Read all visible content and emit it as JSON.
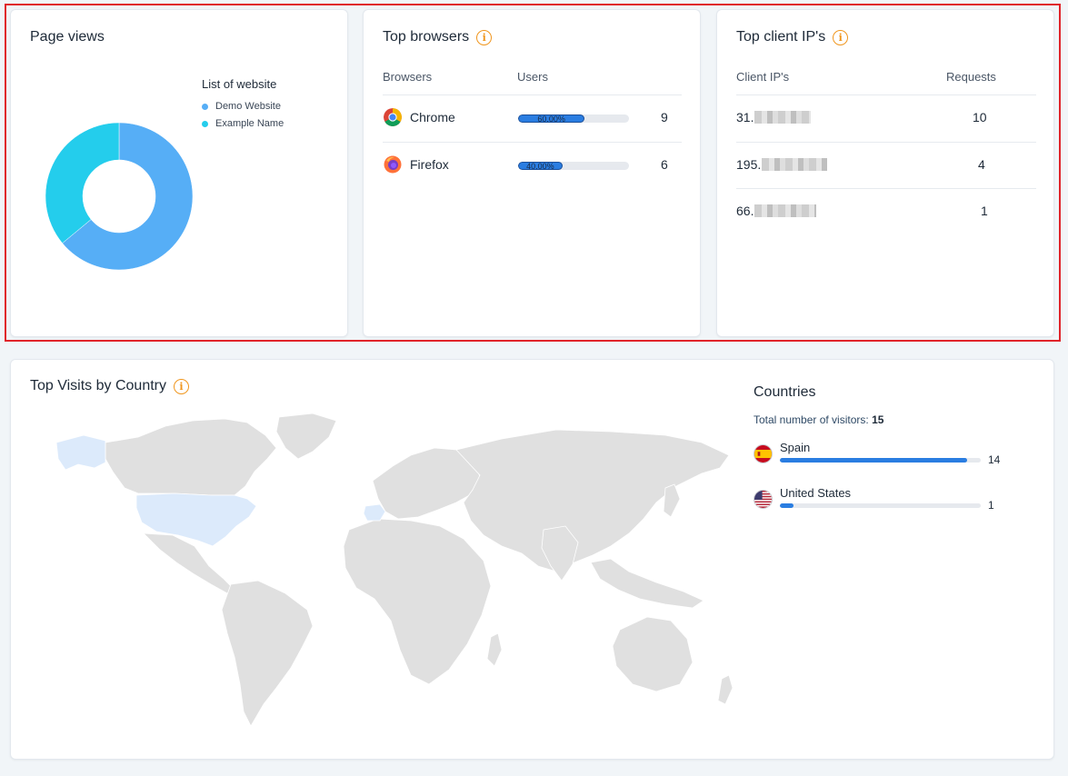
{
  "page_views": {
    "title": "Page views",
    "legend_title": "List of website",
    "chart_data": {
      "type": "pie",
      "variant": "donut",
      "categories": [
        "Demo Website",
        "Example Name"
      ],
      "values": [
        64,
        36
      ],
      "colors": [
        "#56aef6",
        "#24cdec"
      ]
    }
  },
  "top_browsers": {
    "title": "Top browsers",
    "col_browser": "Browsers",
    "col_users": "Users",
    "rows": [
      {
        "name": "Chrome",
        "percent_label": "60.00%",
        "percent": 60,
        "count": "9",
        "icon": "chrome-icon"
      },
      {
        "name": "Firefox",
        "percent_label": "40.00%",
        "percent": 40,
        "count": "6",
        "icon": "firefox-icon"
      }
    ]
  },
  "top_client_ips": {
    "title": "Top client IP's",
    "col_ip": "Client IP's",
    "col_requests": "Requests",
    "rows": [
      {
        "ip_prefix": "31.",
        "requests": "10"
      },
      {
        "ip_prefix": "195.",
        "requests": "4"
      },
      {
        "ip_prefix": "66.",
        "requests": "1"
      }
    ]
  },
  "top_visits": {
    "title": "Top Visits by Country",
    "countries_title": "Countries",
    "total_label": "Total number of visitors:",
    "total_value": "15",
    "countries": [
      {
        "name": "Spain",
        "count": "14",
        "fraction": 0.93,
        "flag": "spain-flag-icon"
      },
      {
        "name": "United States",
        "count": "1",
        "fraction": 0.07,
        "flag": "usa-flag-icon"
      }
    ],
    "map_colors": {
      "land": "#e0e0e0",
      "visited": "#dceafb"
    }
  }
}
